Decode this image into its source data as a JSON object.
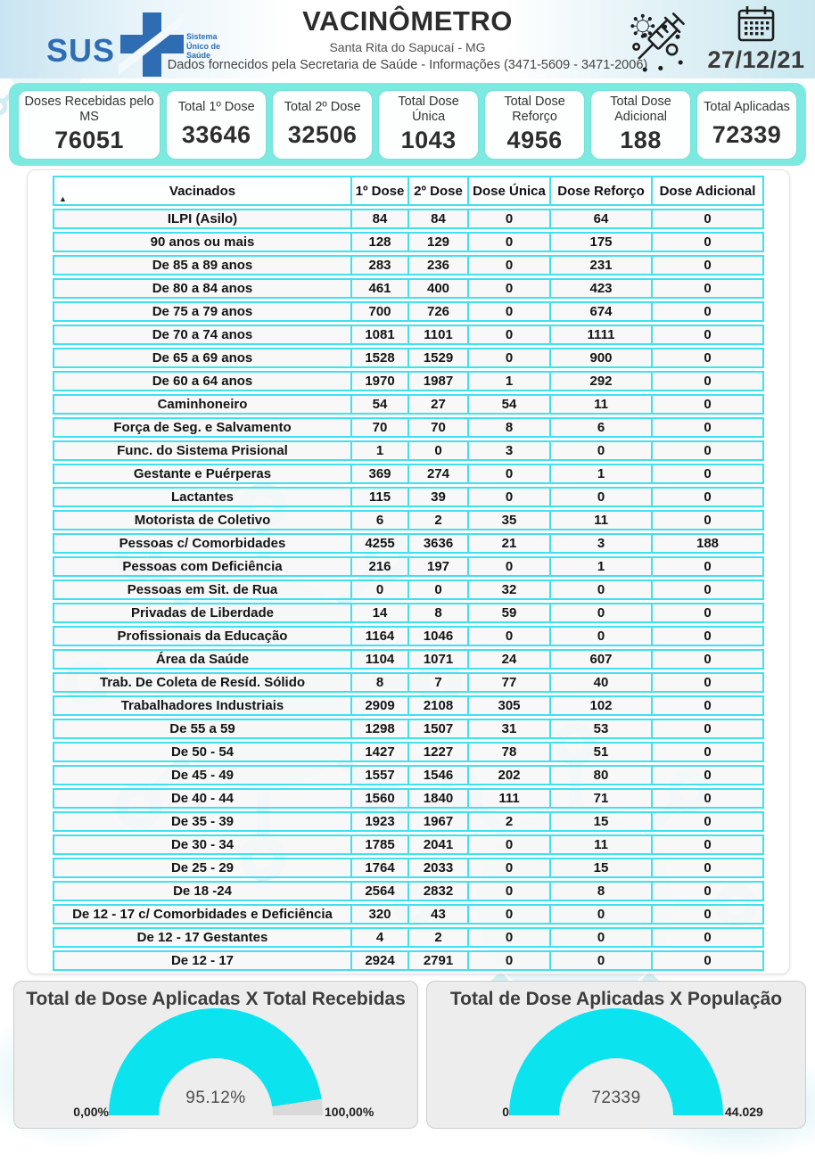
{
  "header": {
    "title": "VACINÔMETRO",
    "subtitle": "Santa Rita do Sapucaí - MG",
    "info": "Dados fornecidos pela Secretaria de Saúde - Informações (3471-5609 - 3471-2006)",
    "logo": {
      "text": "SUS",
      "tagline": "Sistema Único de Saúde"
    },
    "date": "27/12/21"
  },
  "summary_cards": [
    {
      "label": "Doses Recebidas pelo MS",
      "value": "76051"
    },
    {
      "label": "Total 1º Dose",
      "value": "33646"
    },
    {
      "label": "Total 2º Dose",
      "value": "32506"
    },
    {
      "label": "Total Dose Única",
      "value": "1043"
    },
    {
      "label": "Total Dose Reforço",
      "value": "4956"
    },
    {
      "label": "Total Dose Adicional",
      "value": "188"
    },
    {
      "label": "Total Aplicadas",
      "value": "72339"
    }
  ],
  "colors": {
    "strip_turquoise": "#7deae2",
    "table_border_cyan": "#40e0ef",
    "gauge_arc_cyan": "#0be3ee",
    "sus_blue": "#2e6db4"
  },
  "chart_data": [
    {
      "type": "table",
      "title": "Vacinados",
      "sort_indicator": "▲",
      "columns": [
        "Vacinados",
        "1º Dose",
        "2º Dose",
        "Dose Única",
        "Dose Reforço",
        "Dose Adicional"
      ],
      "rows": [
        [
          "ILPI (Asilo)",
          "84",
          "84",
          "0",
          "64",
          "0"
        ],
        [
          "90 anos ou mais",
          "128",
          "129",
          "0",
          "175",
          "0"
        ],
        [
          "De 85 a 89 anos",
          "283",
          "236",
          "0",
          "231",
          "0"
        ],
        [
          "De 80 a 84 anos",
          "461",
          "400",
          "0",
          "423",
          "0"
        ],
        [
          "De 75 a 79 anos",
          "700",
          "726",
          "0",
          "674",
          "0"
        ],
        [
          "De 70 a 74 anos",
          "1081",
          "1101",
          "0",
          "1111",
          "0"
        ],
        [
          "De 65 a 69 anos",
          "1528",
          "1529",
          "0",
          "900",
          "0"
        ],
        [
          "De 60 a 64 anos",
          "1970",
          "1987",
          "1",
          "292",
          "0"
        ],
        [
          "Caminhoneiro",
          "54",
          "27",
          "54",
          "11",
          "0"
        ],
        [
          "Força de Seg. e Salvamento",
          "70",
          "70",
          "8",
          "6",
          "0"
        ],
        [
          "Func. do Sistema Prisional",
          "1",
          "0",
          "3",
          "0",
          "0"
        ],
        [
          "Gestante e Puérperas",
          "369",
          "274",
          "0",
          "1",
          "0"
        ],
        [
          "Lactantes",
          "115",
          "39",
          "0",
          "0",
          "0"
        ],
        [
          "Motorista de Coletivo",
          "6",
          "2",
          "35",
          "11",
          "0"
        ],
        [
          "Pessoas c/ Comorbidades",
          "4255",
          "3636",
          "21",
          "3",
          "188"
        ],
        [
          "Pessoas com Deficiência",
          "216",
          "197",
          "0",
          "1",
          "0"
        ],
        [
          "Pessoas em Sit. de Rua",
          "0",
          "0",
          "32",
          "0",
          "0"
        ],
        [
          "Privadas de Liberdade",
          "14",
          "8",
          "59",
          "0",
          "0"
        ],
        [
          "Profissionais da Educação",
          "1164",
          "1046",
          "0",
          "0",
          "0"
        ],
        [
          "Área da Saúde",
          "1104",
          "1071",
          "24",
          "607",
          "0"
        ],
        [
          "Trab. De Coleta de Resíd. Sólido",
          "8",
          "7",
          "77",
          "40",
          "0"
        ],
        [
          "Trabalhadores Industriais",
          "2909",
          "2108",
          "305",
          "102",
          "0"
        ],
        [
          "De 55 a 59",
          "1298",
          "1507",
          "31",
          "53",
          "0"
        ],
        [
          "De 50 - 54",
          "1427",
          "1227",
          "78",
          "51",
          "0"
        ],
        [
          "De 45 - 49",
          "1557",
          "1546",
          "202",
          "80",
          "0"
        ],
        [
          "De 40 - 44",
          "1560",
          "1840",
          "111",
          "71",
          "0"
        ],
        [
          "De 35 - 39",
          "1923",
          "1967",
          "2",
          "15",
          "0"
        ],
        [
          "De 30 - 34",
          "1785",
          "2041",
          "0",
          "11",
          "0"
        ],
        [
          "De 25 - 29",
          "1764",
          "2033",
          "0",
          "15",
          "0"
        ],
        [
          "De 18 -24",
          "2564",
          "2832",
          "0",
          "8",
          "0"
        ],
        [
          "De 12 - 17 c/ Comorbidades e Deficiência",
          "320",
          "43",
          "0",
          "0",
          "0"
        ],
        [
          "De 12 - 17 Gestantes",
          "4",
          "2",
          "0",
          "0",
          "0"
        ],
        [
          "De 12 - 17",
          "2924",
          "2791",
          "0",
          "0",
          "0"
        ]
      ]
    },
    {
      "type": "gauge",
      "title": "Total de Dose Aplicadas X Total Recebidas",
      "value": 95.12,
      "value_label": "95.12%",
      "min": 0,
      "max": 100,
      "min_label": "0,00%",
      "max_label": "100,00%"
    },
    {
      "type": "gauge",
      "title": "Total de Dose Aplicadas X População",
      "value": 72339,
      "value_label": "72339",
      "min": 0,
      "max": 44029,
      "min_label": "0",
      "max_label": "44.029"
    }
  ]
}
